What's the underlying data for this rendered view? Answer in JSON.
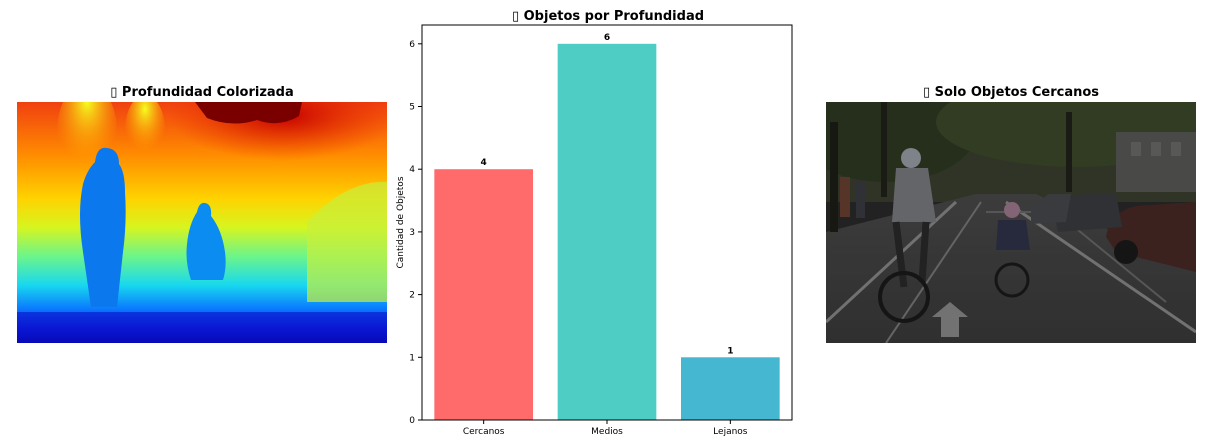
{
  "panels": {
    "left": {
      "title": "▯ Profundidad Colorizada"
    },
    "center": {
      "title": "▯ Objetos por Profundidad"
    },
    "right": {
      "title": "▯ Solo Objetos Cercanos"
    }
  },
  "chart_data": {
    "type": "bar",
    "title": "▯ Objetos por Profundidad",
    "xlabel": "",
    "ylabel": "Cantidad de Objetos",
    "categories": [
      "Cercanos",
      "Medios",
      "Lejanos"
    ],
    "values": [
      4,
      6,
      1
    ],
    "data_labels": [
      "4",
      "6",
      "1"
    ],
    "colors": [
      "#ff6b6b",
      "#4ecdc4",
      "#45b7d1"
    ],
    "ylim": [
      0,
      6.3
    ],
    "yticks": [
      "0",
      "1",
      "2",
      "3",
      "4",
      "5",
      "6"
    ],
    "grid": false
  }
}
